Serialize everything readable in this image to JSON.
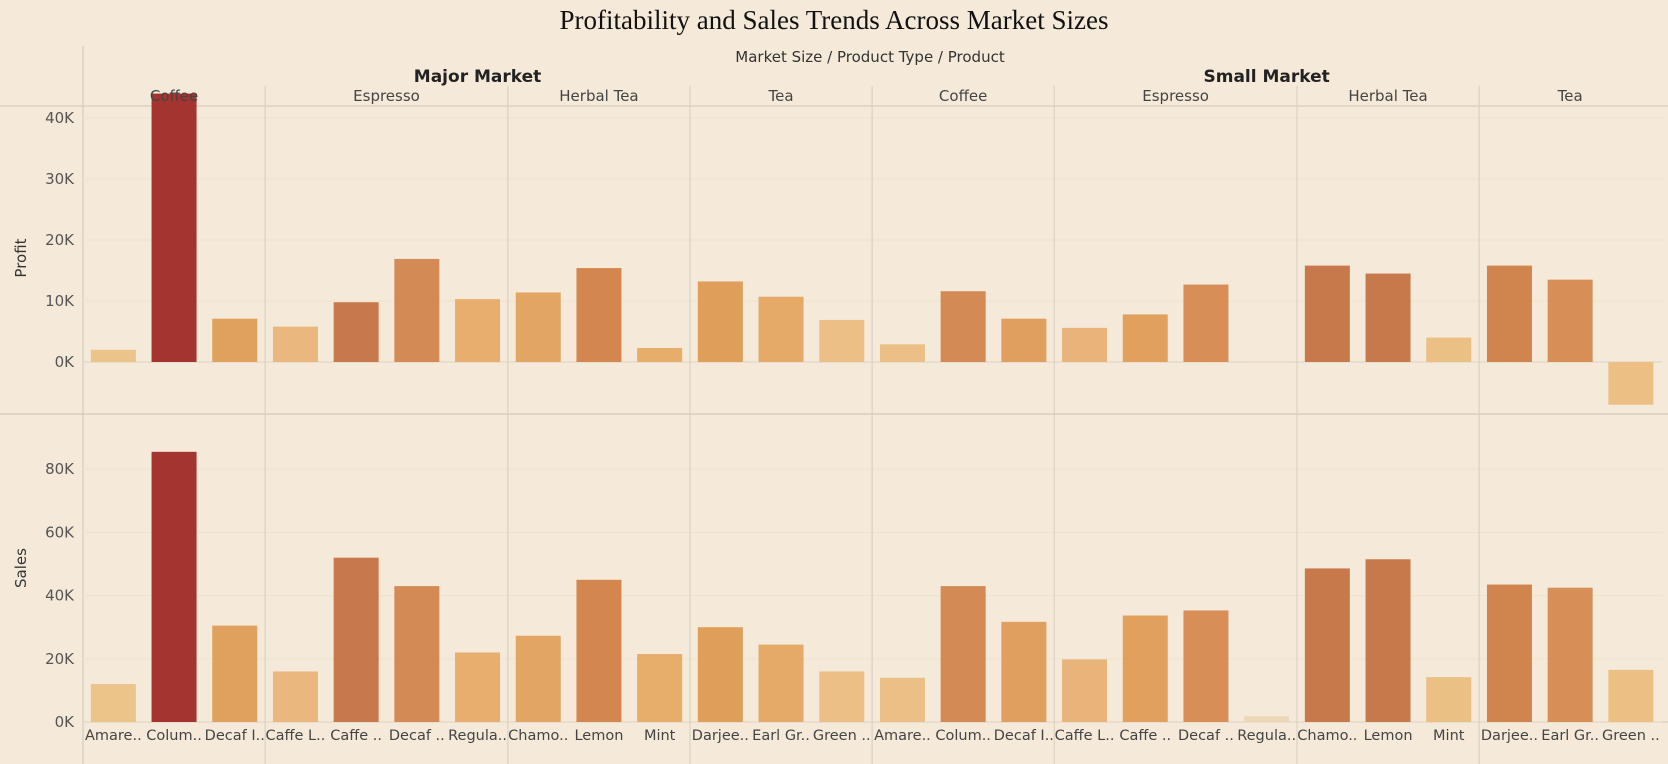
{
  "chart_data": {
    "type": "bar",
    "title": "Profitability and Sales Trends Across Market Sizes",
    "column_header": "Market Size  /  Product Type  /  Product",
    "markets": [
      {
        "name": "Major Market",
        "groups": [
          {
            "name": "Coffee",
            "products": [
              "Amare..",
              "Colum..",
              "Decaf I.."
            ]
          },
          {
            "name": "Espresso",
            "products": [
              "Caffe L..",
              "Caffe ..",
              "Decaf ..",
              "Regula.."
            ]
          },
          {
            "name": "Herbal Tea",
            "products": [
              "Chamo..",
              "Lemon",
              "Mint"
            ]
          },
          {
            "name": "Tea",
            "products": [
              "Darjee..",
              "Earl Gr..",
              "Green .."
            ]
          }
        ]
      },
      {
        "name": "Small Market",
        "groups": [
          {
            "name": "Coffee",
            "products": [
              "Amare..",
              "Colum..",
              "Decaf I.."
            ]
          },
          {
            "name": "Espresso",
            "products": [
              "Caffe L..",
              "Caffe ..",
              "Decaf ..",
              "Regula.."
            ]
          },
          {
            "name": "Herbal Tea",
            "products": [
              "Chamo..",
              "Lemon",
              "Mint"
            ]
          },
          {
            "name": "Tea",
            "products": [
              "Darjee..",
              "Earl Gr..",
              "Green .."
            ]
          }
        ]
      }
    ],
    "series": [
      {
        "name": "Profit",
        "ticks": [
          0,
          10000,
          20000,
          30000,
          40000
        ],
        "tick_labels": [
          "0K",
          "10K",
          "20K",
          "30K",
          "40K"
        ],
        "ylim": [
          -7500,
          47500
        ],
        "values": [
          2000,
          44000,
          7100,
          5800,
          9800,
          16900,
          10300,
          11400,
          15400,
          2300,
          13200,
          10700,
          6900,
          2900,
          11600,
          7100,
          5600,
          7800,
          12700,
          0,
          15800,
          14500,
          4000,
          15800,
          13500,
          -7000
        ]
      },
      {
        "name": "Sales",
        "ticks": [
          0,
          20000,
          40000,
          60000,
          80000
        ],
        "tick_labels": [
          "0K",
          "20K",
          "40K",
          "60K",
          "80K"
        ],
        "ylim": [
          -3000,
          88000
        ],
        "values": [
          12000,
          85500,
          30500,
          16000,
          52000,
          43000,
          22000,
          27300,
          45000,
          21500,
          30000,
          24500,
          16000,
          14000,
          43000,
          31700,
          19800,
          33700,
          35300,
          1800,
          48600,
          51500,
          14200,
          43500,
          42500,
          16500
        ]
      }
    ],
    "colors": [
      "#ecc388",
      "#a3342f",
      "#e0a05e",
      "#eab87e",
      "#c7784c",
      "#d38a55",
      "#e7ae6d",
      "#e3a563",
      "#d3874f",
      "#e7ad6a",
      "#e09e5b",
      "#e5aa67",
      "#ebbf85",
      "#ebbf85",
      "#d38a54",
      "#e09f5e",
      "#e8b479",
      "#e2a05f",
      "#d78f57",
      "#ecd7b8",
      "#c7794c",
      "#c7794c",
      "#ebc084",
      "#d0854e",
      "#d68f57",
      "#ecbf84"
    ],
    "grid": true,
    "legend": "none"
  }
}
